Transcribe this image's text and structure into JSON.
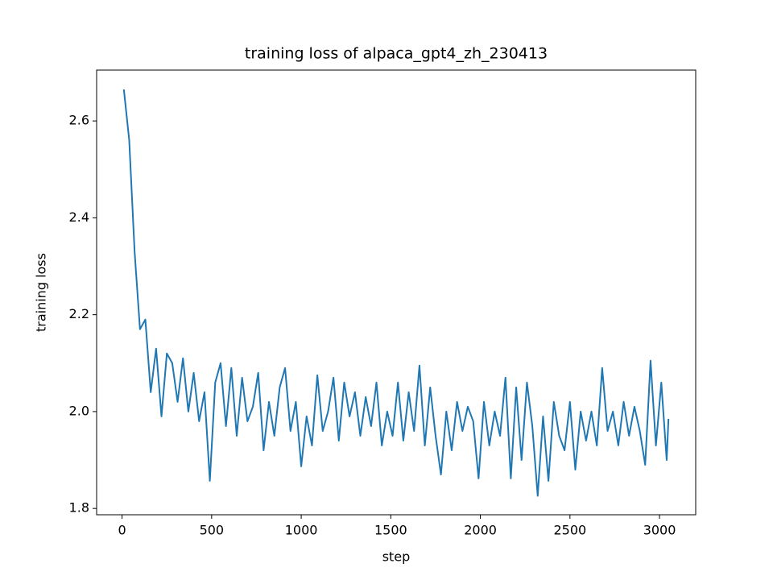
{
  "chart_data": {
    "type": "line",
    "title": "training loss of alpaca_gpt4_zh_230413",
    "x_label": "step",
    "y_label": "training loss",
    "x": [
      10,
      40,
      70,
      100,
      130,
      160,
      190,
      220,
      250,
      280,
      310,
      340,
      370,
      400,
      430,
      460,
      490,
      520,
      550,
      580,
      610,
      640,
      670,
      700,
      730,
      760,
      790,
      820,
      850,
      880,
      910,
      940,
      970,
      1000,
      1030,
      1060,
      1090,
      1120,
      1150,
      1180,
      1210,
      1240,
      1270,
      1300,
      1330,
      1360,
      1390,
      1420,
      1450,
      1480,
      1510,
      1540,
      1570,
      1600,
      1630,
      1660,
      1690,
      1720,
      1750,
      1780,
      1810,
      1840,
      1870,
      1900,
      1930,
      1960,
      1990,
      2020,
      2050,
      2080,
      2110,
      2140,
      2170,
      2200,
      2230,
      2260,
      2290,
      2320,
      2350,
      2380,
      2410,
      2440,
      2470,
      2500,
      2530,
      2560,
      2590,
      2620,
      2650,
      2680,
      2710,
      2740,
      2770,
      2800,
      2830,
      2860,
      2890,
      2920,
      2950,
      2980,
      3010,
      3040,
      3050
    ],
    "series": [
      {
        "color": "#1f77b4",
        "values": [
          2.665,
          2.56,
          2.33,
          2.17,
          2.19,
          2.04,
          2.13,
          1.99,
          2.12,
          2.1,
          2.02,
          2.11,
          2.0,
          2.08,
          1.98,
          2.04,
          1.857,
          2.06,
          2.1,
          1.97,
          2.09,
          1.95,
          2.07,
          1.98,
          2.01,
          2.08,
          1.92,
          2.02,
          1.95,
          2.05,
          2.09,
          1.96,
          2.02,
          1.887,
          1.99,
          1.93,
          2.075,
          1.96,
          2.0,
          2.07,
          1.94,
          2.06,
          1.99,
          2.04,
          1.95,
          2.03,
          1.97,
          2.06,
          1.93,
          2.0,
          1.95,
          2.06,
          1.94,
          2.04,
          1.96,
          2.095,
          1.93,
          2.05,
          1.95,
          1.87,
          2.0,
          1.92,
          2.02,
          1.96,
          2.01,
          1.98,
          1.862,
          2.02,
          1.93,
          2.0,
          1.95,
          2.07,
          1.862,
          2.05,
          1.9,
          2.06,
          1.97,
          1.826,
          1.99,
          1.857,
          2.02,
          1.95,
          1.92,
          2.02,
          1.88,
          2.0,
          1.94,
          2.0,
          1.93,
          2.09,
          1.96,
          2.0,
          1.93,
          2.02,
          1.95,
          2.01,
          1.96,
          1.89,
          2.105,
          1.93,
          2.06,
          1.9,
          1.985
        ]
      }
    ],
    "xlim": [
      -142,
      3202
    ],
    "ylim": [
      1.787,
      2.705
    ],
    "xticks": [
      0,
      500,
      1000,
      1500,
      2000,
      2500,
      3000
    ],
    "yticks": [
      1.8,
      {
        "value": 2,
        "label": "2.0"
      },
      2.2,
      2.4,
      2.6
    ]
  }
}
